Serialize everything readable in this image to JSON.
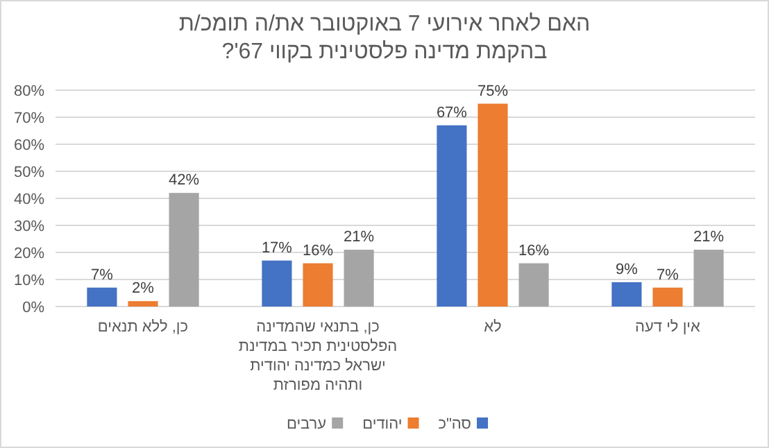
{
  "chart_data": {
    "type": "bar",
    "title": "האם לאחר אירועי 7 באוקטובר את/ה תומכ/ת בהקמת מדינה פלסטינית בקווי 67'?",
    "categories": [
      "כן, ללא תנאים",
      "כן, בתנאי שהמדינה הפלסטינית תכיר במדינת ישראל כמדינה יהודית ותהיה מפורזת",
      "לא",
      "אין לי דעה"
    ],
    "series": [
      {
        "name": "סה\"כ",
        "color": "#4472c4",
        "values": [
          7,
          17,
          67,
          9
        ],
        "value_labels": [
          "7%",
          "17%",
          "67%",
          "9%"
        ]
      },
      {
        "name": "יהודים",
        "color": "#ed7d31",
        "values": [
          2,
          16,
          75,
          7
        ],
        "value_labels": [
          "2%",
          "16%",
          "75%",
          "7%"
        ]
      },
      {
        "name": "ערבים",
        "color": "#a5a5a5",
        "values": [
          42,
          21,
          16,
          21
        ],
        "value_labels": [
          "42%",
          "21%",
          "16%",
          "21%"
        ]
      }
    ],
    "ylim": [
      0,
      80
    ],
    "yticks": [
      {
        "value": 0,
        "label": "0%"
      },
      {
        "value": 10,
        "label": "10%"
      },
      {
        "value": 20,
        "label": "20%"
      },
      {
        "value": 30,
        "label": "30%"
      },
      {
        "value": 40,
        "label": "40%"
      },
      {
        "value": 50,
        "label": "50%"
      },
      {
        "value": 60,
        "label": "60%"
      },
      {
        "value": 70,
        "label": "70%"
      },
      {
        "value": 80,
        "label": "80%"
      }
    ],
    "grid": "y",
    "legend": "bottom"
  }
}
